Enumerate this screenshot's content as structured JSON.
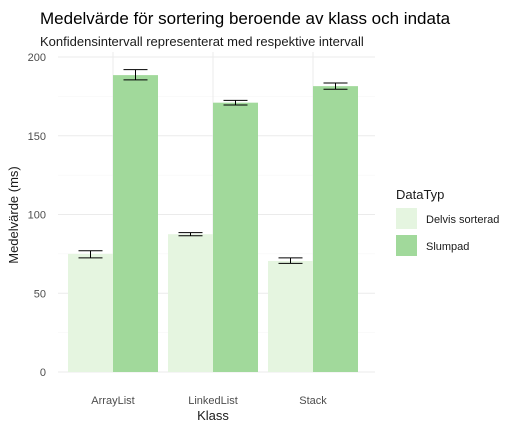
{
  "chart_data": {
    "type": "bar",
    "title": "Medelvärde för sortering beroende av klass och indata",
    "subtitle": "Konfidensintervall representerat med respektive intervall",
    "xlabel": "Klass",
    "ylabel": "Medelvärde (ms)",
    "categories": [
      "ArrayList",
      "LinkedList",
      "Stack"
    ],
    "ylim": [
      0,
      200
    ],
    "yticks": [
      0,
      50,
      100,
      150,
      200
    ],
    "grid": true,
    "legend": {
      "title": "DataTyp",
      "position": "right"
    },
    "series": [
      {
        "name": "Delvis sorterad",
        "color": "#e5f5e0",
        "values": [
          75,
          87.5,
          70.5
        ],
        "ci_low": [
          72.5,
          86.5,
          69
        ],
        "ci_high": [
          77,
          88.5,
          72.5
        ]
      },
      {
        "name": "Slumpad",
        "color": "#a1d99b",
        "values": [
          188.5,
          171,
          181.5
        ],
        "ci_low": [
          185.5,
          169.5,
          179.5
        ],
        "ci_high": [
          192,
          172.5,
          183.5
        ]
      }
    ]
  }
}
